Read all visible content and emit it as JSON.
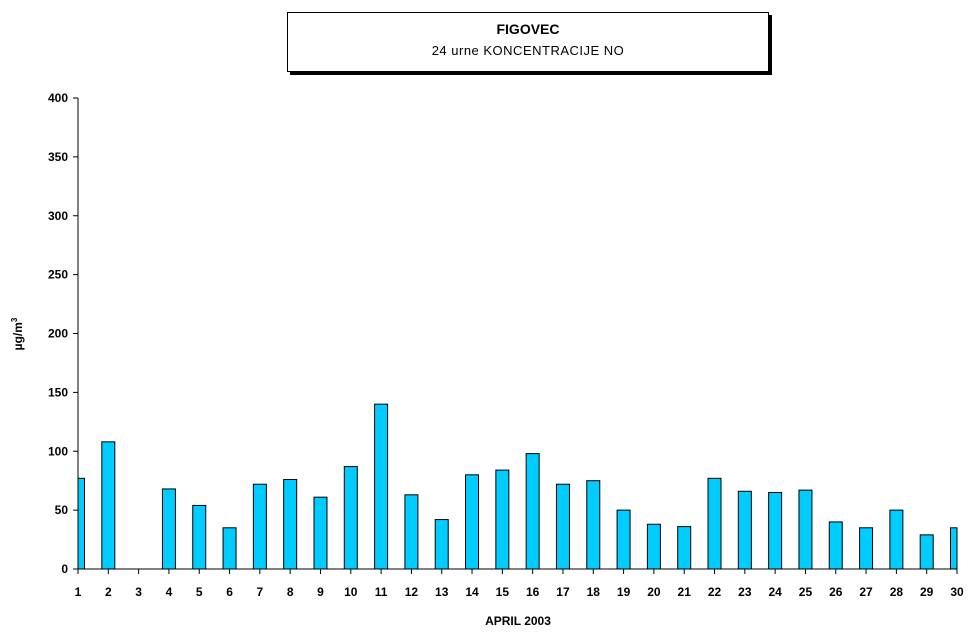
{
  "chart_data": {
    "type": "bar",
    "title": "FIGOVEC",
    "subtitle": "24 urne KONCENTRACIJE NO",
    "xlabel": "APRIL 2003",
    "ylabel": "µg/m",
    "ylabel_superscript": "3",
    "ylim": [
      0,
      400
    ],
    "yticks": [
      "0",
      "50",
      "100",
      "150",
      "200",
      "250",
      "300",
      "350",
      "400"
    ],
    "categories": [
      "1",
      "2",
      "3",
      "4",
      "5",
      "6",
      "7",
      "8",
      "9",
      "10",
      "11",
      "12",
      "13",
      "14",
      "15",
      "16",
      "17",
      "18",
      "19",
      "20",
      "21",
      "22",
      "23",
      "24",
      "25",
      "26",
      "27",
      "28",
      "29",
      "30"
    ],
    "values": [
      77,
      108,
      null,
      68,
      54,
      35,
      72,
      76,
      61,
      87,
      140,
      63,
      42,
      80,
      84,
      98,
      72,
      75,
      50,
      38,
      36,
      77,
      66,
      65,
      67,
      40,
      35,
      50,
      29,
      35
    ],
    "bar_color": "#00CCFF",
    "grid": false
  }
}
